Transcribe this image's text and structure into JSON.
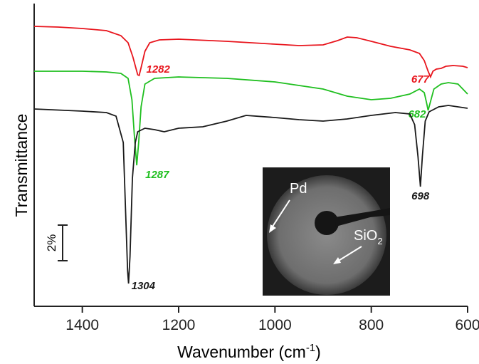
{
  "chart_data": {
    "type": "line",
    "xlabel": "Wavenumber (cm",
    "xlabel_sup": "-1",
    "xlabel_end": ")",
    "ylabel": "Transmittance",
    "xlim": [
      1500,
      600
    ],
    "xticks": [
      1400,
      1200,
      1000,
      800,
      600
    ],
    "ylim": [
      0,
      17
    ],
    "scale_bar": {
      "value": 2,
      "label": "2%"
    },
    "series": [
      {
        "color": "#e8141c",
        "peaks": [
          1282,
          677
        ],
        "x": [
          1500,
          1450,
          1400,
          1350,
          1320,
          1305,
          1295,
          1285,
          1282,
          1278,
          1270,
          1260,
          1240,
          1200,
          1100,
          1000,
          950,
          900,
          870,
          850,
          830,
          800,
          760,
          720,
          700,
          690,
          682,
          677,
          672,
          665,
          655,
          645,
          630,
          610,
          600
        ],
        "values": [
          15.72,
          15.68,
          15.6,
          15.48,
          15.2,
          14.8,
          14,
          13,
          12.96,
          13.4,
          14.32,
          14.8,
          14.96,
          15,
          14.88,
          14.72,
          14.64,
          14.68,
          14.92,
          15.12,
          15.08,
          14.88,
          14.6,
          14.4,
          14.2,
          13.8,
          13.2,
          12.88,
          13.2,
          13.32,
          13.36,
          13.48,
          13.52,
          13.48,
          13.4
        ]
      },
      {
        "color": "#1fbf1f",
        "peaks": [
          1287,
          682
        ],
        "x": [
          1500,
          1400,
          1350,
          1320,
          1305,
          1297,
          1292,
          1287,
          1283,
          1278,
          1270,
          1250,
          1200,
          1100,
          1000,
          900,
          850,
          800,
          760,
          720,
          700,
          690,
          685,
          682,
          678,
          670,
          655,
          640,
          620,
          600
        ],
        "values": [
          13.2,
          13.2,
          13.16,
          13.08,
          12.8,
          11.6,
          9.6,
          7.92,
          9.2,
          11.2,
          12.48,
          12.8,
          12.88,
          12.8,
          12.6,
          12.2,
          11.8,
          11.6,
          11.68,
          11.92,
          12.2,
          12,
          11.4,
          11,
          11.4,
          12.2,
          12.48,
          12.56,
          12.48,
          11.92
        ]
      },
      {
        "color": "#1a1a1a",
        "peaks": [
          1304,
          698
        ],
        "x": [
          1500,
          1400,
          1350,
          1330,
          1315,
          1310,
          1306,
          1304,
          1301,
          1296,
          1290,
          1285,
          1270,
          1250,
          1230,
          1200,
          1150,
          1100,
          1060,
          1000,
          950,
          900,
          850,
          800,
          750,
          720,
          710,
          703,
          698,
          694,
          688,
          680,
          660,
          640,
          620,
          600
        ],
        "values": [
          11.08,
          10.96,
          10.88,
          10.68,
          9.2,
          5.2,
          2,
          1.28,
          2.8,
          7.2,
          9.2,
          9.8,
          10,
          9.92,
          9.8,
          10,
          10.08,
          10.4,
          10.72,
          10.6,
          10.48,
          10.4,
          10.52,
          10.72,
          10.88,
          10.8,
          10.2,
          8.4,
          6.72,
          8.4,
          10.4,
          10.92,
          11.2,
          11.28,
          11.2,
          11.12
        ]
      }
    ],
    "inset": {
      "label_pd": "Pd",
      "label_sio": "SiO",
      "label_sio_sub": "2"
    }
  }
}
